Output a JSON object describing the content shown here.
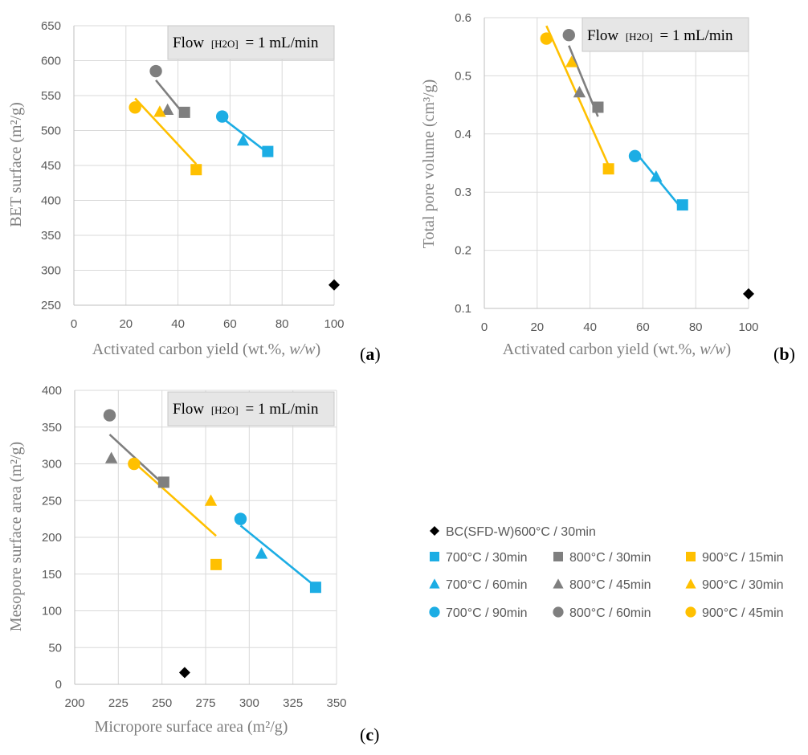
{
  "colors": {
    "blue": "#1CADE4",
    "gray": "#7F7F7F",
    "yellow": "#FFC000",
    "black": "#000000"
  },
  "panel_labels": [
    "(",
    "a",
    ")",
    "(",
    "b",
    ")",
    "(",
    "c",
    ")"
  ],
  "annotation": {
    "prefix": "Flow",
    "subscript": "[H2O]",
    "suffix": "= 1 mL/min"
  },
  "legend": [
    {
      "label": "BC(SFD-W)600°C / 30min",
      "color": "black",
      "marker": "diamond"
    },
    {
      "label": "700°C / 30min",
      "color": "blue",
      "marker": "square"
    },
    {
      "label": "800°C / 30min",
      "color": "gray",
      "marker": "square"
    },
    {
      "label": "900°C / 15min",
      "color": "yellow",
      "marker": "square"
    },
    {
      "label": "700°C / 60min",
      "color": "blue",
      "marker": "triangle"
    },
    {
      "label": "800°C / 45min",
      "color": "gray",
      "marker": "triangle"
    },
    {
      "label": "900°C / 30min",
      "color": "yellow",
      "marker": "triangle"
    },
    {
      "label": "700°C / 90min",
      "color": "blue",
      "marker": "circle"
    },
    {
      "label": "800°C / 60min",
      "color": "gray",
      "marker": "circle"
    },
    {
      "label": "900°C / 45min",
      "color": "yellow",
      "marker": "circle"
    }
  ],
  "chart_data": [
    {
      "type": "scatter",
      "panel": "a",
      "xlabel_parts": [
        "Activated carbon yield (wt.%, ",
        "w/w",
        ")"
      ],
      "ylabel": "BET surface (m²/g)",
      "xlim": [
        0,
        100
      ],
      "ylim": [
        250,
        650
      ],
      "xticks": [
        "0",
        "20",
        "40",
        "60",
        "80",
        "100"
      ],
      "yticks": [
        "250",
        "300",
        "350",
        "400",
        "450",
        "500",
        "550",
        "600",
        "650"
      ],
      "points": [
        {
          "series": "BC(SFD-W)600°C / 30min",
          "x": 100,
          "y": 279,
          "color": "black",
          "marker": "diamond"
        },
        {
          "series": "700°C / 30min",
          "x": 74.5,
          "y": 470,
          "color": "blue",
          "marker": "square"
        },
        {
          "series": "700°C / 60min",
          "x": 65,
          "y": 486,
          "color": "blue",
          "marker": "triangle"
        },
        {
          "series": "700°C / 90min",
          "x": 57,
          "y": 520,
          "color": "blue",
          "marker": "circle"
        },
        {
          "series": "800°C / 30min",
          "x": 42.5,
          "y": 526,
          "color": "gray",
          "marker": "square"
        },
        {
          "series": "800°C / 45min",
          "x": 36,
          "y": 530,
          "color": "gray",
          "marker": "triangle"
        },
        {
          "series": "800°C / 60min",
          "x": 31.5,
          "y": 585,
          "color": "gray",
          "marker": "circle"
        },
        {
          "series": "900°C / 15min",
          "x": 47,
          "y": 444,
          "color": "yellow",
          "marker": "square"
        },
        {
          "series": "900°C / 30min",
          "x": 33,
          "y": 527,
          "color": "yellow",
          "marker": "triangle"
        },
        {
          "series": "900°C / 45min",
          "x": 23.5,
          "y": 533,
          "color": "yellow",
          "marker": "circle"
        }
      ],
      "trendlines": [
        {
          "color": "blue",
          "x1": 57,
          "y1": 518,
          "x2": 74.5,
          "y2": 468
        },
        {
          "color": "gray",
          "x1": 31.5,
          "y1": 572,
          "x2": 43,
          "y2": 520
        },
        {
          "color": "yellow",
          "x1": 23.5,
          "y1": 546,
          "x2": 47,
          "y2": 452
        }
      ]
    },
    {
      "type": "scatter",
      "panel": "b",
      "xlabel_parts": [
        "Activated carbon yield (wt.%, ",
        "w/w",
        ")"
      ],
      "ylabel": "Total pore volume (cm³/g)",
      "xlim": [
        0,
        100
      ],
      "ylim": [
        0.1,
        0.6
      ],
      "xticks": [
        "0",
        "20",
        "40",
        "60",
        "80",
        "100"
      ],
      "yticks": [
        "0.1",
        "0.2",
        "0.3",
        "0.4",
        "0.5",
        "0.6"
      ],
      "points": [
        {
          "series": "BC(SFD-W)600°C / 30min",
          "x": 100,
          "y": 0.125,
          "color": "black",
          "marker": "diamond"
        },
        {
          "series": "700°C / 30min",
          "x": 75,
          "y": 0.278,
          "color": "blue",
          "marker": "square"
        },
        {
          "series": "700°C / 60min",
          "x": 65,
          "y": 0.327,
          "color": "blue",
          "marker": "triangle"
        },
        {
          "series": "700°C / 90min",
          "x": 57,
          "y": 0.362,
          "color": "blue",
          "marker": "circle"
        },
        {
          "series": "800°C / 30min",
          "x": 43,
          "y": 0.446,
          "color": "gray",
          "marker": "square"
        },
        {
          "series": "800°C / 45min",
          "x": 36,
          "y": 0.472,
          "color": "gray",
          "marker": "triangle"
        },
        {
          "series": "800°C / 60min",
          "x": 32,
          "y": 0.57,
          "color": "gray",
          "marker": "circle"
        },
        {
          "series": "900°C / 15min",
          "x": 47,
          "y": 0.34,
          "color": "yellow",
          "marker": "square"
        },
        {
          "series": "900°C / 30min",
          "x": 33,
          "y": 0.524,
          "color": "yellow",
          "marker": "triangle"
        },
        {
          "series": "900°C / 45min",
          "x": 23.5,
          "y": 0.564,
          "color": "yellow",
          "marker": "circle"
        }
      ],
      "trendlines": [
        {
          "color": "blue",
          "x1": 57,
          "y1": 0.37,
          "x2": 75,
          "y2": 0.27
        },
        {
          "color": "gray",
          "x1": 32,
          "y1": 0.552,
          "x2": 43,
          "y2": 0.43
        },
        {
          "color": "yellow",
          "x1": 23.5,
          "y1": 0.586,
          "x2": 47,
          "y2": 0.346
        }
      ]
    },
    {
      "type": "scatter",
      "panel": "c",
      "xlabel": "Micropore surface area (m²/g)",
      "ylabel": "Mesopore surface area (m²/g)",
      "xlim": [
        200,
        350
      ],
      "ylim": [
        0,
        400
      ],
      "xticks": [
        "200",
        "225",
        "250",
        "275",
        "300",
        "325",
        "350"
      ],
      "yticks": [
        "0",
        "50",
        "100",
        "150",
        "200",
        "250",
        "300",
        "350",
        "400"
      ],
      "points": [
        {
          "series": "BC(SFD-W)600°C / 30min",
          "x": 263,
          "y": 16,
          "color": "black",
          "marker": "diamond"
        },
        {
          "series": "700°C / 30min",
          "x": 338,
          "y": 132,
          "color": "blue",
          "marker": "square"
        },
        {
          "series": "700°C / 60min",
          "x": 307,
          "y": 178,
          "color": "blue",
          "marker": "triangle"
        },
        {
          "series": "700°C / 90min",
          "x": 295,
          "y": 225,
          "color": "blue",
          "marker": "circle"
        },
        {
          "series": "800°C / 30min",
          "x": 251,
          "y": 275,
          "color": "gray",
          "marker": "square"
        },
        {
          "series": "800°C / 45min",
          "x": 221,
          "y": 308,
          "color": "gray",
          "marker": "triangle"
        },
        {
          "series": "800°C / 60min",
          "x": 220,
          "y": 366,
          "color": "gray",
          "marker": "circle"
        },
        {
          "series": "900°C / 15min",
          "x": 281,
          "y": 163,
          "color": "yellow",
          "marker": "square"
        },
        {
          "series": "900°C / 30min",
          "x": 278,
          "y": 250,
          "color": "yellow",
          "marker": "triangle"
        },
        {
          "series": "900°C / 45min",
          "x": 234,
          "y": 300,
          "color": "yellow",
          "marker": "circle"
        }
      ],
      "trendlines": [
        {
          "color": "blue",
          "x1": 295,
          "y1": 216,
          "x2": 338,
          "y2": 133
        },
        {
          "color": "gray",
          "x1": 220,
          "y1": 340,
          "x2": 251,
          "y2": 272
        },
        {
          "color": "yellow",
          "x1": 234,
          "y1": 302,
          "x2": 281,
          "y2": 202
        }
      ]
    }
  ]
}
